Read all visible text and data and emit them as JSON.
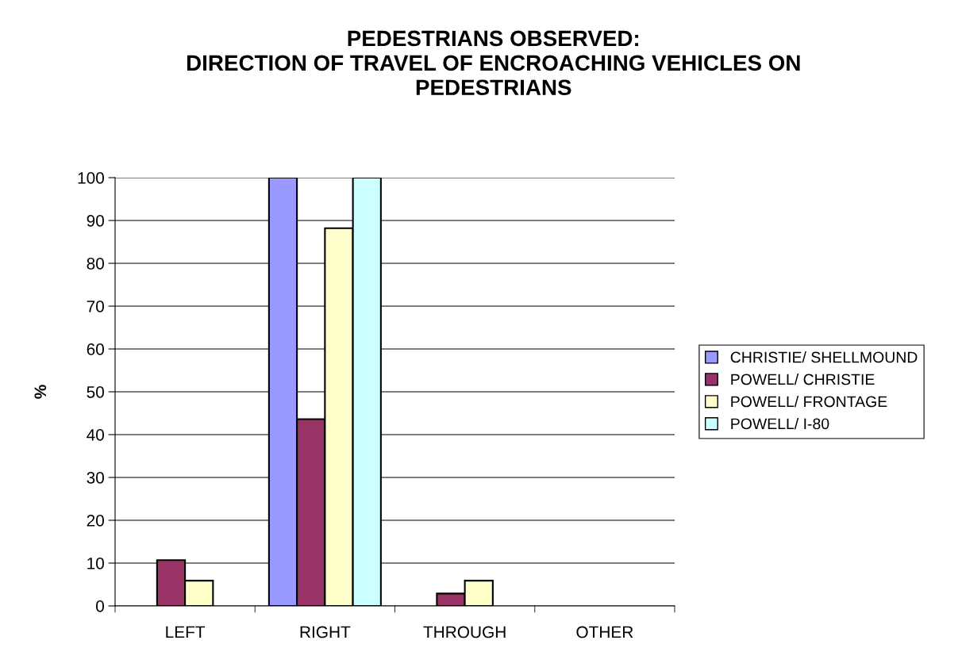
{
  "chart_data": {
    "type": "bar",
    "title": "PEDESTRIANS OBSERVED:\nDIRECTION OF TRAVEL OF ENCROACHING VEHICLES ON\nPEDESTRIANS",
    "ylabel": "%",
    "categories": [
      "LEFT",
      "RIGHT",
      "THROUGH",
      "OTHER"
    ],
    "series": [
      {
        "name": "CHRISTIE/ SHELLMOUND",
        "color": "#9999ff",
        "values": [
          0,
          100,
          0,
          0
        ]
      },
      {
        "name": "POWELL/ CHRISTIE",
        "color": "#993366",
        "values": [
          10.7,
          43.6,
          2.9,
          0
        ]
      },
      {
        "name": "POWELL/ FRONTAGE",
        "color": "#ffffcc",
        "values": [
          5.9,
          88.2,
          5.9,
          0
        ]
      },
      {
        "name": "POWELL/ I-80",
        "color": "#ccffff",
        "values": [
          0,
          100,
          0,
          0
        ]
      }
    ],
    "ylim": [
      0,
      100
    ],
    "yticks": [
      0,
      10,
      20,
      30,
      40,
      50,
      60,
      70,
      80,
      90,
      100
    ],
    "grid": "y",
    "legend": "right"
  }
}
